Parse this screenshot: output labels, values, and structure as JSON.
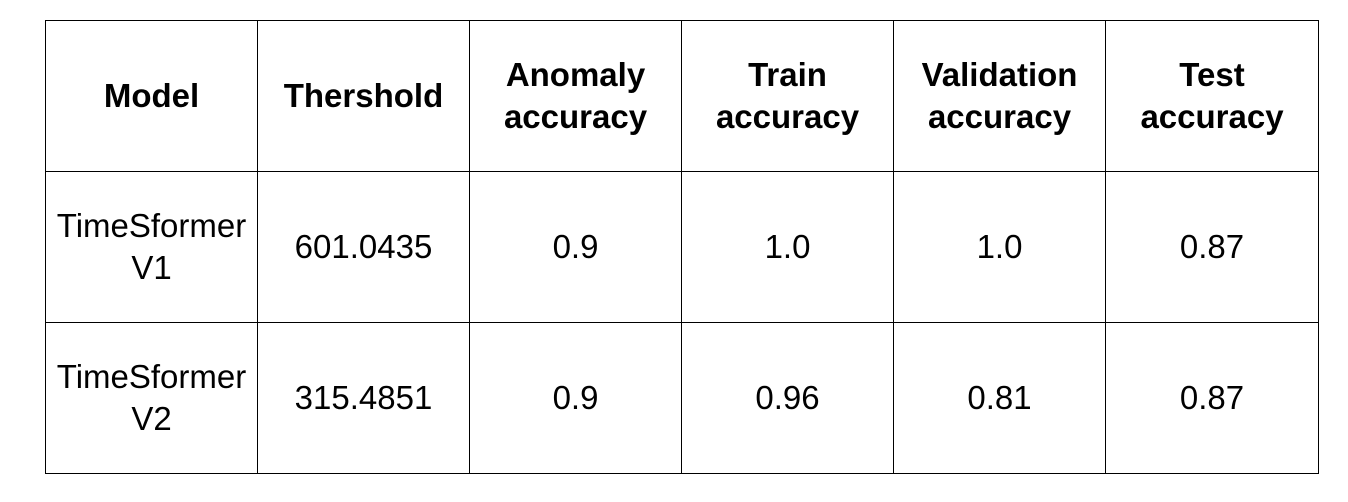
{
  "table": {
    "headers": [
      [
        "Model"
      ],
      [
        "Thershold"
      ],
      [
        "Anomaly",
        "accuracy"
      ],
      [
        "Train",
        "accuracy"
      ],
      [
        "Validation",
        "accuracy"
      ],
      [
        "Test",
        "accuracy"
      ]
    ],
    "rows": [
      {
        "model": [
          "TimeSformer",
          "V1"
        ],
        "threshold": "601.0435",
        "anomaly_accuracy": "0.9",
        "train_accuracy": "1.0",
        "validation_accuracy": "1.0",
        "test_accuracy": "0.87"
      },
      {
        "model": [
          "TimeSformer",
          "V2"
        ],
        "threshold": "315.4851",
        "anomaly_accuracy": "0.9",
        "train_accuracy": "0.96",
        "validation_accuracy": "0.81",
        "test_accuracy": "0.87"
      }
    ]
  }
}
